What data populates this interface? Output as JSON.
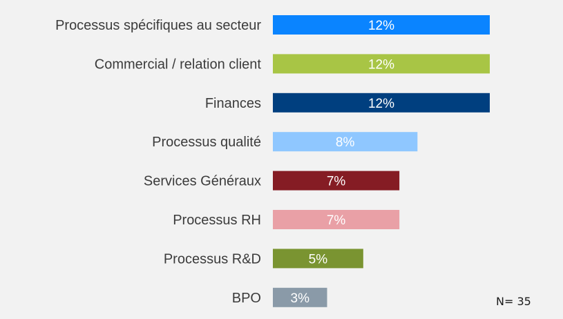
{
  "chart_data": {
    "type": "bar",
    "orientation": "horizontal",
    "categories": [
      "Processus spécifiques au secteur",
      "Commercial / relation client",
      "Finances",
      "Processus qualité",
      "Services Généraux",
      "Processus RH",
      "Processus R&D",
      "BPO"
    ],
    "values": [
      12,
      12,
      12,
      8,
      7,
      7,
      5,
      3
    ],
    "value_labels": [
      "12%",
      "12%",
      "12%",
      "8%",
      "7%",
      "7%",
      "5%",
      "3%"
    ],
    "colors": [
      "#0a84ff",
      "#a8c545",
      "#003f7f",
      "#8fc7ff",
      "#851c24",
      "#e9a0a6",
      "#7a9431",
      "#8a9aa8"
    ],
    "unit": "%",
    "xlim": [
      0,
      12
    ],
    "grid": false,
    "legend": "none",
    "note": "N= 35"
  }
}
